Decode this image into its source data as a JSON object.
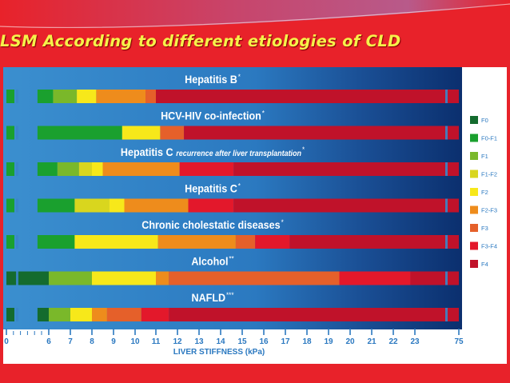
{
  "slide": {
    "title": "LSM According to different etiologies of CLD"
  },
  "chart_data": {
    "type": "bar",
    "orientation": "horizontal-stacked-ranges",
    "xlabel": "LIVER STIFFNESS (kPa)",
    "x_ticks": [
      "0",
      "6",
      "7",
      "8",
      "9",
      "10",
      "11",
      "12",
      "13",
      "14",
      "15",
      "16",
      "17",
      "18",
      "19",
      "20",
      "21",
      "22",
      "23",
      "75"
    ],
    "legend": {
      "placement": "right",
      "items": [
        {
          "key": "F0",
          "label": "F0",
          "color": "#146b2e"
        },
        {
          "key": "F0-F1",
          "label": "F0-F1",
          "color": "#1aa02e"
        },
        {
          "key": "F1",
          "label": "F1",
          "color": "#7ab82a"
        },
        {
          "key": "F1-F2",
          "label": "F1-F2",
          "color": "#d9d61e"
        },
        {
          "key": "F2",
          "label": "F2",
          "color": "#f7e81a"
        },
        {
          "key": "F2-F3",
          "label": "F2-F3",
          "color": "#ee8c1c"
        },
        {
          "key": "F3",
          "label": "F3",
          "color": "#e5602a"
        },
        {
          "key": "F3-F4",
          "label": "F3-F4",
          "color": "#e3182b"
        },
        {
          "key": "F4",
          "label": "F4",
          "color": "#c0122a"
        }
      ]
    },
    "series": [
      {
        "name": "Hepatitis B",
        "mark": "*",
        "segments": [
          {
            "stage": "F0-F1",
            "start": 4.4,
            "end": 6.2
          },
          {
            "stage": "F1",
            "start": 6.2,
            "end": 7.3
          },
          {
            "stage": "F2",
            "start": 7.3,
            "end": 8.2
          },
          {
            "stage": "F2-F3",
            "start": 8.2,
            "end": 10.5
          },
          {
            "stage": "F3",
            "start": 10.5,
            "end": 11.0
          },
          {
            "stage": "F4",
            "start": 11.0,
            "end": 75
          }
        ]
      },
      {
        "name": "HCV-HIV co-infection",
        "mark": "*",
        "segments": [
          {
            "stage": "F0-F1",
            "start": 4.4,
            "end": 9.4
          },
          {
            "stage": "F2",
            "start": 9.4,
            "end": 11.2
          },
          {
            "stage": "F3",
            "start": 11.2,
            "end": 12.3
          },
          {
            "stage": "F4",
            "start": 12.3,
            "end": 75
          }
        ]
      },
      {
        "name": "Hepatitis C",
        "subtitle": "recurrence after liver transplantation",
        "mark": "*",
        "segments": [
          {
            "stage": "F0-F1",
            "start": 4.4,
            "end": 6.4
          },
          {
            "stage": "F1",
            "start": 6.4,
            "end": 7.4
          },
          {
            "stage": "F1-F2",
            "start": 7.4,
            "end": 8.0
          },
          {
            "stage": "F2",
            "start": 8.0,
            "end": 8.5
          },
          {
            "stage": "F2-F3",
            "start": 8.5,
            "end": 12.1
          },
          {
            "stage": "F3-F4",
            "start": 12.1,
            "end": 14.6
          },
          {
            "stage": "F4",
            "start": 14.6,
            "end": 75
          }
        ]
      },
      {
        "name": "Hepatitis C",
        "mark": "*",
        "segments": [
          {
            "stage": "F0-F1",
            "start": 4.4,
            "end": 7.2
          },
          {
            "stage": "F1-F2",
            "start": 7.2,
            "end": 8.8
          },
          {
            "stage": "F2",
            "start": 8.8,
            "end": 9.5
          },
          {
            "stage": "F2-F3",
            "start": 9.5,
            "end": 12.5
          },
          {
            "stage": "F3-F4",
            "start": 12.5,
            "end": 14.6
          },
          {
            "stage": "F4",
            "start": 14.6,
            "end": 75
          }
        ]
      },
      {
        "name": "Chronic cholestatic diseases",
        "mark": "*",
        "segments": [
          {
            "stage": "F0-F1",
            "start": 4.4,
            "end": 7.2
          },
          {
            "stage": "F2",
            "start": 7.2,
            "end": 11.1
          },
          {
            "stage": "F2-F3",
            "start": 11.1,
            "end": 14.7
          },
          {
            "stage": "F3",
            "start": 14.7,
            "end": 15.6
          },
          {
            "stage": "F3-F4",
            "start": 15.6,
            "end": 17.2
          },
          {
            "stage": "F4",
            "start": 17.2,
            "end": 75
          }
        ]
      },
      {
        "name": "Alcohol",
        "mark": "**",
        "segments": [
          {
            "stage": "F0",
            "start": 0,
            "end": 6.0
          },
          {
            "stage": "F1",
            "start": 6.0,
            "end": 8.0
          },
          {
            "stage": "F2",
            "start": 8.0,
            "end": 11.0
          },
          {
            "stage": "F2-F3",
            "start": 11.0,
            "end": 11.6
          },
          {
            "stage": "F3",
            "start": 11.6,
            "end": 19.5
          },
          {
            "stage": "F3-F4",
            "start": 19.5,
            "end": 22.8
          },
          {
            "stage": "F4",
            "start": 22.8,
            "end": 75
          }
        ]
      },
      {
        "name": "NAFLD",
        "mark": "***",
        "segments": [
          {
            "stage": "F0",
            "start": 4.4,
            "end": 6.0
          },
          {
            "stage": "F1",
            "start": 6.0,
            "end": 7.0
          },
          {
            "stage": "F2",
            "start": 7.0,
            "end": 8.0
          },
          {
            "stage": "F2-F3",
            "start": 8.0,
            "end": 8.7
          },
          {
            "stage": "F3",
            "start": 8.7,
            "end": 10.3
          },
          {
            "stage": "F3-F4",
            "start": 10.3,
            "end": 11.6
          },
          {
            "stage": "F4",
            "start": 11.6,
            "end": 75
          }
        ]
      }
    ]
  }
}
